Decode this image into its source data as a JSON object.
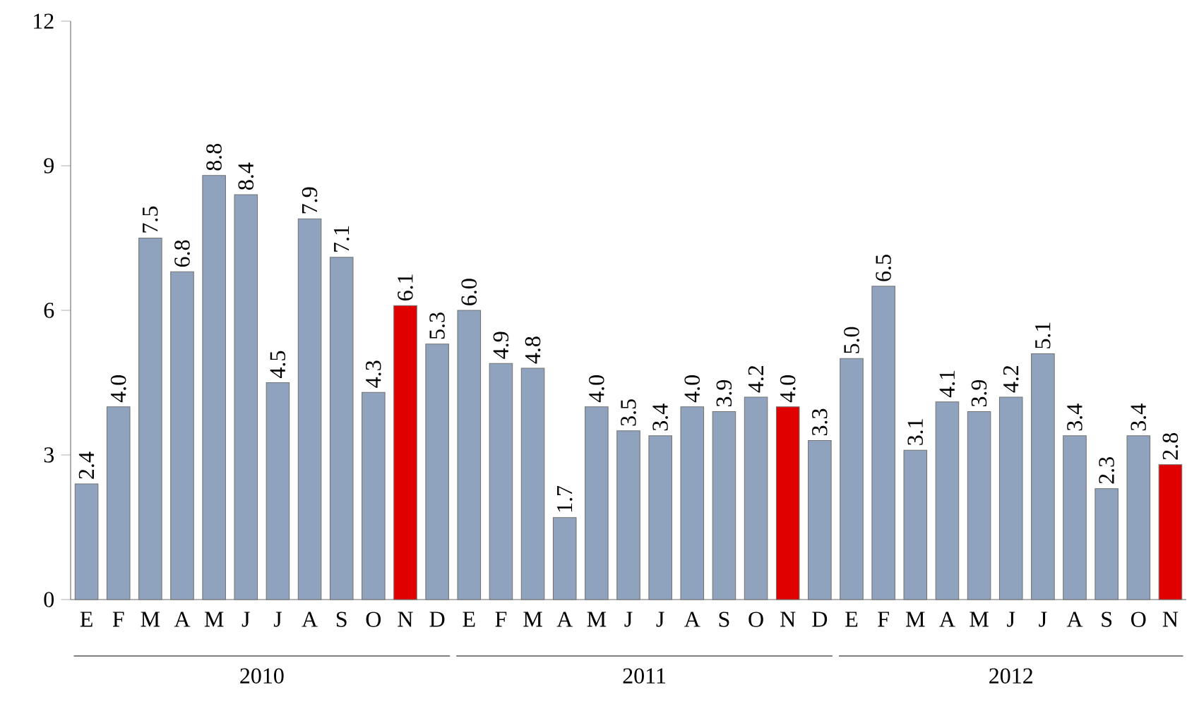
{
  "chart_data": {
    "type": "bar",
    "categories": [
      "E",
      "F",
      "M",
      "A",
      "M",
      "J",
      "J",
      "A",
      "S",
      "O",
      "N",
      "D",
      "E",
      "F",
      "M",
      "A",
      "M",
      "J",
      "J",
      "A",
      "S",
      "O",
      "N",
      "D",
      "E",
      "F",
      "M",
      "A",
      "M",
      "J",
      "J",
      "A",
      "S",
      "O",
      "N"
    ],
    "values": [
      2.4,
      4.0,
      7.5,
      6.8,
      8.8,
      8.4,
      4.5,
      7.9,
      7.1,
      4.3,
      6.1,
      5.3,
      6.0,
      4.9,
      4.8,
      1.7,
      4.0,
      3.5,
      3.4,
      4.0,
      3.9,
      4.2,
      4.0,
      3.3,
      5.0,
      6.5,
      3.1,
      4.1,
      3.9,
      4.2,
      5.1,
      3.4,
      2.3,
      3.4,
      2.8
    ],
    "colors": [
      "#8fa3bf",
      "#8fa3bf",
      "#8fa3bf",
      "#8fa3bf",
      "#8fa3bf",
      "#8fa3bf",
      "#8fa3bf",
      "#8fa3bf",
      "#8fa3bf",
      "#8fa3bf",
      "#e00000",
      "#8fa3bf",
      "#8fa3bf",
      "#8fa3bf",
      "#8fa3bf",
      "#8fa3bf",
      "#8fa3bf",
      "#8fa3bf",
      "#8fa3bf",
      "#8fa3bf",
      "#8fa3bf",
      "#8fa3bf",
      "#e00000",
      "#8fa3bf",
      "#8fa3bf",
      "#8fa3bf",
      "#8fa3bf",
      "#8fa3bf",
      "#8fa3bf",
      "#8fa3bf",
      "#8fa3bf",
      "#8fa3bf",
      "#8fa3bf",
      "#8fa3bf",
      "#e00000"
    ],
    "ylim": [
      0,
      12
    ],
    "yticks": [
      0,
      3,
      6,
      9,
      12
    ],
    "value_labels": [
      "2.4",
      "4.0",
      "7.5",
      "6.8",
      "8.8",
      "8.4",
      "4.5",
      "7.9",
      "7.1",
      "4.3",
      "6.1",
      "5.3",
      "6.0",
      "4.9",
      "4.8",
      "1.7",
      "4.0",
      "3.5",
      "3.4",
      "4.0",
      "3.9",
      "4.2",
      "4.0",
      "3.3",
      "5.0",
      "6.5",
      "3.1",
      "4.1",
      "3.9",
      "4.2",
      "5.1",
      "3.4",
      "2.3",
      "3.4",
      "2.8"
    ],
    "grid": false,
    "annotations": [
      "2010",
      "2011",
      "2012"
    ]
  }
}
